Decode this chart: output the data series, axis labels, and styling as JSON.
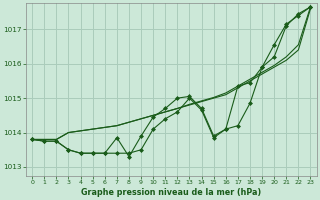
{
  "background_color": "#cce8d8",
  "plot_bg_color": "#cce8d8",
  "grid_color": "#aaccbb",
  "line_color": "#1a5c1a",
  "xlabel": "Graphe pression niveau de la mer (hPa)",
  "ylim": [
    1012.75,
    1017.75
  ],
  "xlim": [
    -0.5,
    23.5
  ],
  "yticks": [
    1013,
    1014,
    1015,
    1016,
    1017
  ],
  "xticks": [
    0,
    1,
    2,
    3,
    4,
    5,
    6,
    7,
    8,
    9,
    10,
    11,
    12,
    13,
    14,
    15,
    16,
    17,
    18,
    19,
    20,
    21,
    22,
    23
  ],
  "series_jagged": [
    1013.8,
    1013.75,
    1013.75,
    1013.5,
    1013.4,
    1013.4,
    1013.4,
    1013.85,
    1013.3,
    1013.9,
    1014.45,
    1014.7,
    1015.0,
    1015.05,
    1014.7,
    1013.9,
    1014.1,
    1014.2,
    1014.85,
    1015.9,
    1016.2,
    1017.1,
    1017.45,
    1017.65
  ],
  "series_smooth1": [
    1013.8,
    1013.8,
    1013.8,
    1014.0,
    1014.05,
    1014.1,
    1014.15,
    1014.2,
    1014.3,
    1014.4,
    1014.5,
    1014.6,
    1014.7,
    1014.8,
    1014.9,
    1015.0,
    1015.1,
    1015.3,
    1015.5,
    1015.7,
    1015.9,
    1016.1,
    1016.4,
    1017.6
  ],
  "series_smooth2": [
    1013.8,
    1013.8,
    1013.8,
    1014.0,
    1014.05,
    1014.1,
    1014.15,
    1014.2,
    1014.3,
    1014.4,
    1014.5,
    1014.6,
    1014.7,
    1014.82,
    1014.92,
    1015.02,
    1015.15,
    1015.35,
    1015.55,
    1015.75,
    1015.95,
    1016.2,
    1016.55,
    1017.65
  ],
  "series_dip": [
    1013.8,
    1013.75,
    1013.75,
    1013.5,
    1013.4,
    1013.4,
    1013.4,
    1013.4,
    1013.4,
    1013.5,
    1014.1,
    1014.4,
    1014.6,
    1015.0,
    1014.65,
    1013.85,
    1014.1,
    1015.35,
    1015.45,
    1015.9,
    1016.55,
    1017.15,
    1017.4,
    1017.65
  ]
}
